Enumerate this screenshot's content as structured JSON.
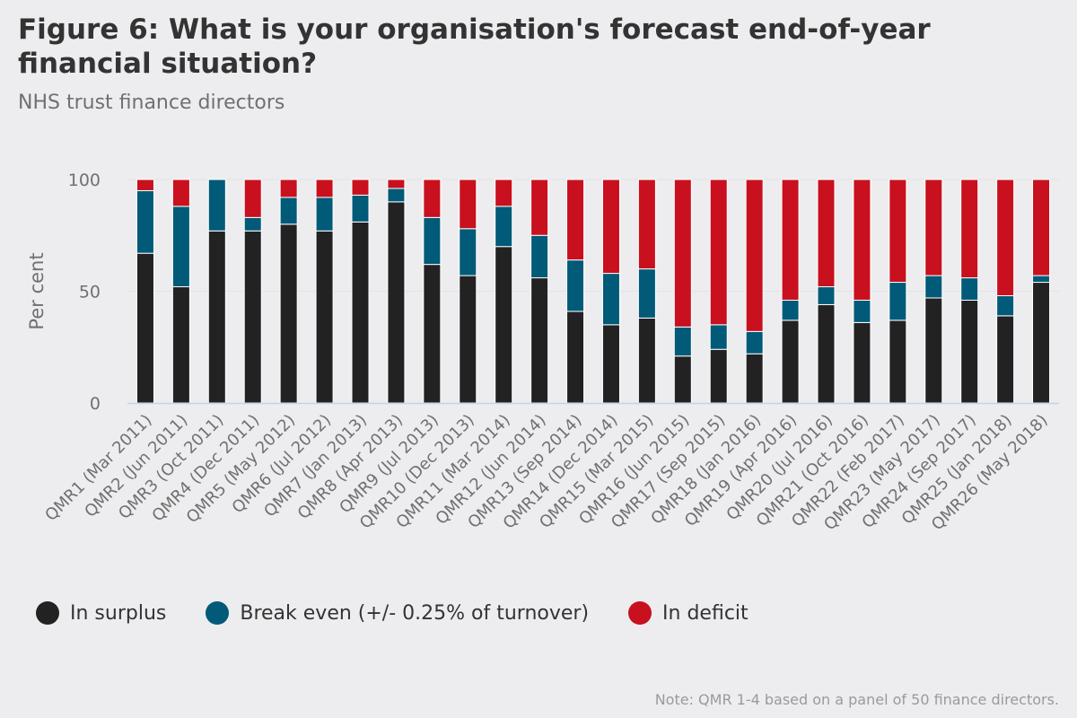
{
  "title": "Figure 6: What is your organisation's forecast end-of-year financial situation?",
  "subtitle": "NHS trust finance directors",
  "note": "Note: QMR 1-4 based on a panel of 50 finance directors.",
  "colors": {
    "surplus": "#222222",
    "break_even": "#005a78",
    "deficit": "#c8101e",
    "grid": "#e2e2e6",
    "axis": "#c4d3e6",
    "tick_text": "#707070"
  },
  "chart_data": {
    "type": "bar",
    "stacked": true,
    "title": "Figure 6: What is your organisation's forecast end-of-year financial situation?",
    "subtitle": "NHS trust finance directors",
    "xlabel": "",
    "ylabel": "Per cent",
    "ylim": [
      0,
      100
    ],
    "yticks": [
      0,
      50,
      100
    ],
    "categories": [
      "QMR1 (Mar 2011)",
      "QMR2 (Jun 2011)",
      "QMR3 (Oct 2011)",
      "QMR4 (Dec 2011)",
      "QMR5 (May 2012)",
      "QMR6 (Jul 2012)",
      "QMR7 (Jan 2013)",
      "QMR8 (Apr 2013)",
      "QMR9 (Jul 2013)",
      "QMR10 (Dec 2013)",
      "QMR11 (Mar 2014)",
      "QMR12 (Jun 2014)",
      "QMR13 (Sep 2014)",
      "QMR14 (Dec 2014)",
      "QMR15 (Mar 2015)",
      "QMR16 (Jun 2015)",
      "QMR17 (Sep 2015)",
      "QMR18 (Jan 2016)",
      "QMR19 (Apr 2016)",
      "QMR20 (Jul 2016)",
      "QMR21 (Oct 2016)",
      "QMR22 (Feb 2017)",
      "QMR23 (May 2017)",
      "QMR24 (Sep 2017)",
      "QMR25 (Jan 2018)",
      "QMR26 (May 2018)"
    ],
    "series": [
      {
        "name": "In surplus",
        "values": [
          67,
          52,
          77,
          77,
          80,
          77,
          81,
          90,
          62,
          57,
          70,
          56,
          41,
          35,
          38,
          21,
          24,
          22,
          37,
          44,
          36,
          37,
          47,
          46,
          39,
          54
        ]
      },
      {
        "name": "Break even (+/- 0.25% of turnover)",
        "values": [
          28,
          36,
          23,
          6,
          12,
          15,
          12,
          6,
          21,
          21,
          18,
          19,
          23,
          23,
          22,
          13,
          11,
          10,
          9,
          8,
          10,
          17,
          10,
          10,
          9,
          3
        ]
      },
      {
        "name": "In deficit",
        "values": [
          5,
          12,
          0,
          17,
          8,
          8,
          7,
          4,
          17,
          22,
          12,
          25,
          36,
          42,
          40,
          66,
          65,
          68,
          54,
          48,
          54,
          46,
          43,
          44,
          52,
          43
        ]
      }
    ],
    "legend": "bottom-left",
    "grid": true
  }
}
